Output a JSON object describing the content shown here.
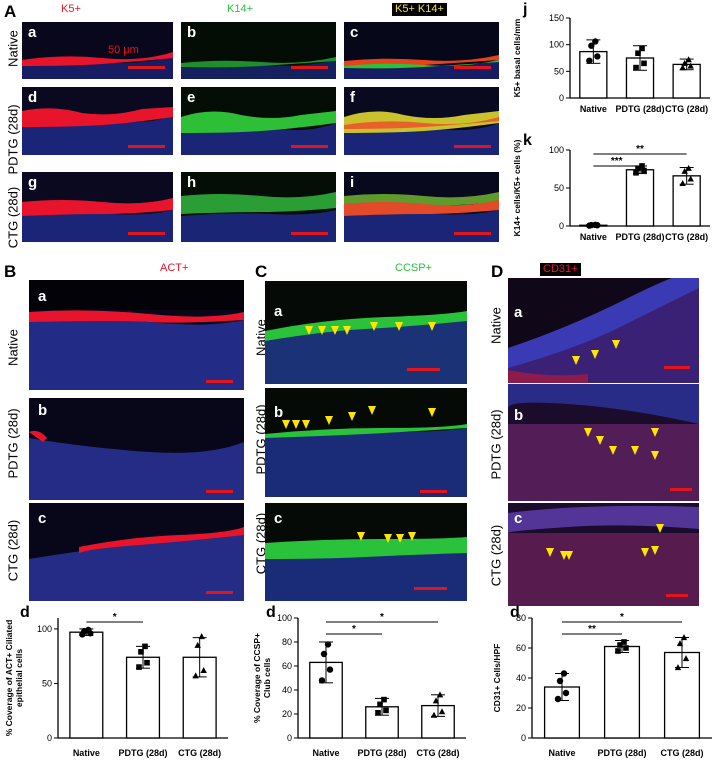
{
  "colors": {
    "red": "#e8142b",
    "green": "#29c23a",
    "blue": "#2230c8",
    "yellow_arrow": "#ffe600",
    "scale_bar": "#e2141c"
  },
  "panel_A": {
    "letter": "A",
    "stains": [
      "K5+",
      "K14+",
      "K5+ K14+"
    ],
    "row_labels": [
      "Native",
      "PDTG (28d)",
      "CTG (28d)"
    ],
    "sub_letters": [
      "a",
      "b",
      "c",
      "d",
      "e",
      "f",
      "g",
      "h",
      "i"
    ],
    "scale_text": "50 μm"
  },
  "panel_B": {
    "letter": "B",
    "stain": "ACT+",
    "row_labels": [
      "Native",
      "PDTG (28d)",
      "CTG (28d)"
    ],
    "sub_letters": [
      "a",
      "b",
      "c"
    ],
    "chart_letter": "d"
  },
  "panel_C": {
    "letter": "C",
    "stain": "CCSP+",
    "row_labels": [
      "Native",
      "PDTG (28d)",
      "CTG (28d)"
    ],
    "sub_letters": [
      "a",
      "b",
      "c"
    ],
    "chart_letter": "d"
  },
  "panel_D": {
    "letter": "D",
    "stain": "CD31+",
    "row_labels": [
      "Native",
      "PDTG (28d)",
      "CTG (28d)"
    ],
    "sub_letters": [
      "a",
      "b",
      "c"
    ],
    "chart_letter": "d"
  },
  "chart_letters": {
    "j": "j",
    "k": "k"
  },
  "chart_data": [
    {
      "id": "j",
      "type": "bar",
      "categories": [
        "Native",
        "PDTG (28d)",
        "CTG (28d)"
      ],
      "values": [
        87,
        75,
        63
      ],
      "errors": [
        22,
        23,
        10
      ],
      "points": [
        [
          70,
          78,
          98,
          106
        ],
        [
          57,
          65,
          84,
          93
        ],
        [
          57,
          60,
          65,
          72
        ]
      ],
      "ylabel": "K5+ basal cells/mm",
      "ylim": [
        0,
        150
      ],
      "yticks": [
        0,
        50,
        100,
        150
      ],
      "significance": []
    },
    {
      "id": "k",
      "type": "bar",
      "categories": [
        "Native",
        "PDTG (28d)",
        "CTG (28d)"
      ],
      "values": [
        1,
        74,
        66
      ],
      "errors": [
        1,
        5,
        11
      ],
      "points": [
        [
          0.5,
          1,
          1.2,
          1.5
        ],
        [
          70,
          73,
          76,
          79
        ],
        [
          56,
          62,
          72,
          76
        ]
      ],
      "ylabel": "K14+ cells/K5+ cells  (%)",
      "ylim": [
        0,
        100
      ],
      "yticks": [
        0,
        50,
        100
      ],
      "significance": [
        {
          "from": 0,
          "to": 1,
          "label": "***"
        },
        {
          "from": 0,
          "to": 2,
          "label": "**"
        }
      ]
    },
    {
      "id": "B-d",
      "type": "bar",
      "categories": [
        "Native",
        "PDTG (28d)",
        "CTG (28d)"
      ],
      "values": [
        97,
        74,
        74
      ],
      "errors": [
        3,
        10,
        18
      ],
      "points": [
        [
          95,
          96,
          98,
          99
        ],
        [
          65,
          69,
          79,
          84
        ],
        [
          57,
          62,
          85,
          93
        ]
      ],
      "ylabel": "% Coverage of ACT+ Ciliated epithelial cells",
      "ylim": [
        0,
        110
      ],
      "yticks": [
        0,
        50,
        100
      ],
      "significance": [
        {
          "from": 0,
          "to": 1,
          "label": "*"
        }
      ]
    },
    {
      "id": "C-d",
      "type": "bar",
      "categories": [
        "Native",
        "PDTG (28d)",
        "CTG (28d)"
      ],
      "values": [
        63,
        26,
        27
      ],
      "errors": [
        17,
        7,
        9
      ],
      "points": [
        [
          48,
          57,
          70,
          78
        ],
        [
          21,
          23,
          28,
          32
        ],
        [
          19,
          22,
          31,
          36
        ]
      ],
      "ylabel": "% Coverage of CCSP+ Club cells",
      "ylim": [
        0,
        100
      ],
      "yticks": [
        0,
        20,
        40,
        60,
        80,
        100
      ],
      "significance": [
        {
          "from": 0,
          "to": 1,
          "label": "*"
        },
        {
          "from": 0,
          "to": 2,
          "label": "*"
        }
      ]
    },
    {
      "id": "D-d",
      "type": "bar",
      "categories": [
        "Native",
        "PDTG (28d)",
        "CTG (28d)"
      ],
      "values": [
        34,
        61,
        57
      ],
      "errors": [
        9,
        4,
        10
      ],
      "points": [
        [
          26,
          30,
          38,
          43
        ],
        [
          58,
          60,
          62,
          64
        ],
        [
          47,
          53,
          63,
          67
        ]
      ],
      "ylabel": "CD31+ Cells/HPF",
      "ylim": [
        0,
        80
      ],
      "yticks": [
        0,
        20,
        40,
        60,
        80
      ],
      "significance": [
        {
          "from": 0,
          "to": 1,
          "label": "**"
        },
        {
          "from": 0,
          "to": 2,
          "label": "*"
        }
      ]
    }
  ]
}
